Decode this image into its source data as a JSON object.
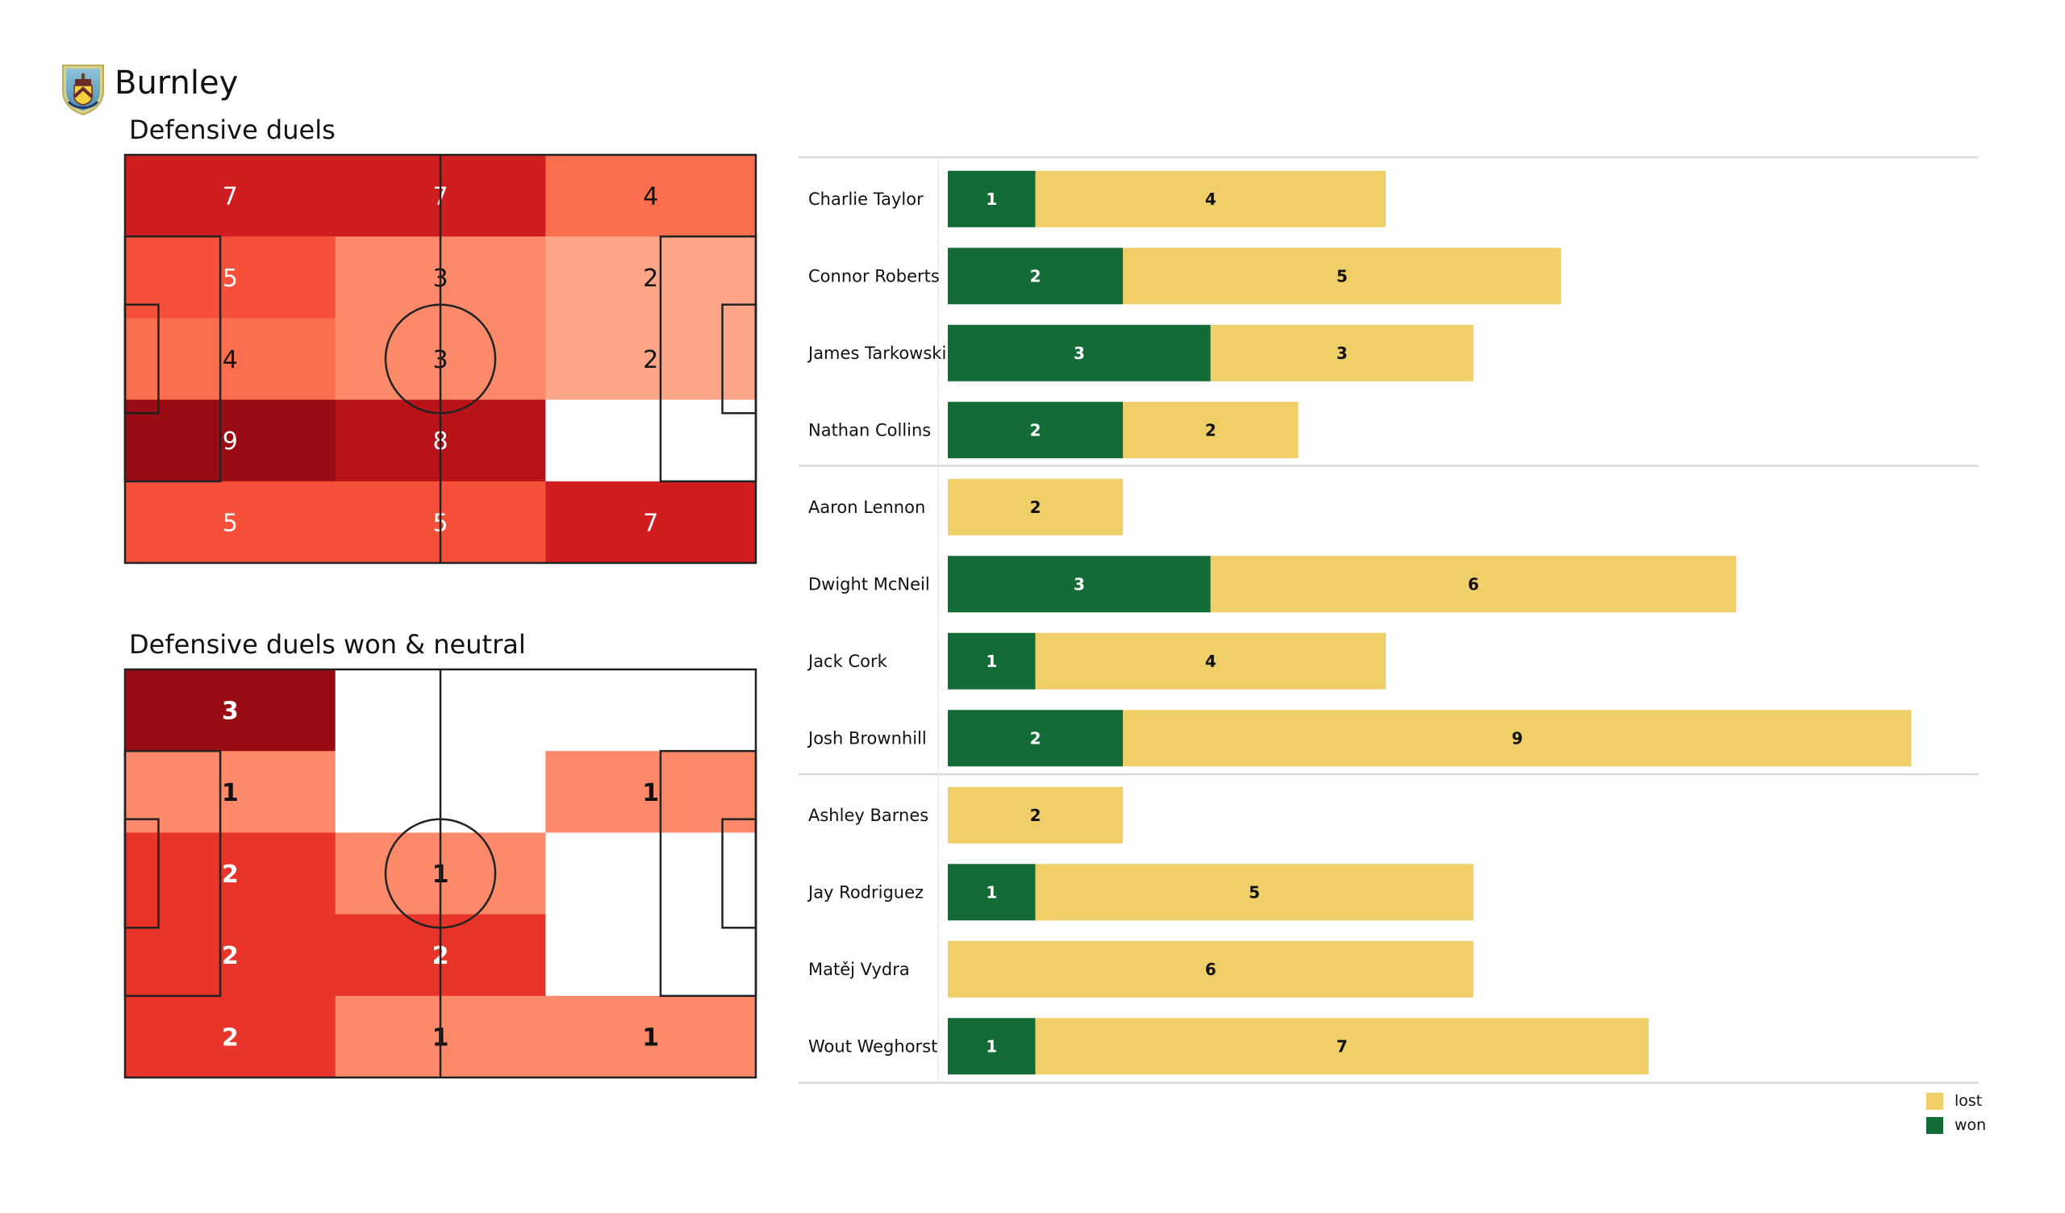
{
  "header": {
    "team": "Burnley",
    "crest_icon": "burnley-crest-icon"
  },
  "colors": {
    "won": "#136b37",
    "lost": "#f0cf68",
    "line": "#222222",
    "separator": "#d9d9d9"
  },
  "chart_data": [
    {
      "type": "heatmap",
      "title": "Defensive duels",
      "rows": 5,
      "cols": 3,
      "values": [
        [
          7,
          7,
          4
        ],
        [
          5,
          3,
          2
        ],
        [
          4,
          3,
          2
        ],
        [
          9,
          8,
          0
        ],
        [
          5,
          5,
          7
        ]
      ],
      "labels_shown_for_zero": false,
      "colorscale": "Reds",
      "vmax": 9
    },
    {
      "type": "heatmap",
      "title": "Defensive duels won & neutral",
      "rows": 5,
      "cols": 3,
      "values": [
        [
          3,
          0,
          0
        ],
        [
          1,
          0,
          1
        ],
        [
          2,
          1,
          0
        ],
        [
          2,
          2,
          0
        ],
        [
          2,
          1,
          1
        ]
      ],
      "labels_shown_for_zero": false,
      "colorscale": "Reds",
      "vmax": 3
    },
    {
      "type": "bar",
      "orientation": "horizontal",
      "stacked": true,
      "legend": [
        "lost",
        "won"
      ],
      "legend_position": "bottom-right",
      "groups": [
        [
          "Charlie Taylor",
          "Connor Roberts",
          "James  Tarkowski",
          "Nathan Collins"
        ],
        [
          "Aaron  Lennon",
          "Dwight McNeil",
          "Jack Cork",
          "Josh Brownhill"
        ],
        [
          "Ashley Barnes",
          "Jay Rodriguez",
          "Matěj Vydra",
          "Wout Weghorst"
        ]
      ],
      "categories": [
        "Charlie Taylor",
        "Connor Roberts",
        "James  Tarkowski",
        "Nathan Collins",
        "Aaron  Lennon",
        "Dwight McNeil",
        "Jack Cork",
        "Josh Brownhill",
        "Ashley Barnes",
        "Jay Rodriguez",
        "Matěj Vydra",
        "Wout Weghorst"
      ],
      "series": [
        {
          "name": "won",
          "values": [
            1,
            2,
            3,
            2,
            0,
            3,
            1,
            2,
            0,
            1,
            0,
            1
          ]
        },
        {
          "name": "lost",
          "values": [
            4,
            5,
            3,
            2,
            2,
            6,
            4,
            9,
            2,
            5,
            6,
            7
          ]
        }
      ],
      "xlim": [
        0,
        11
      ]
    }
  ],
  "legend": {
    "lost": "lost",
    "won": "won"
  }
}
